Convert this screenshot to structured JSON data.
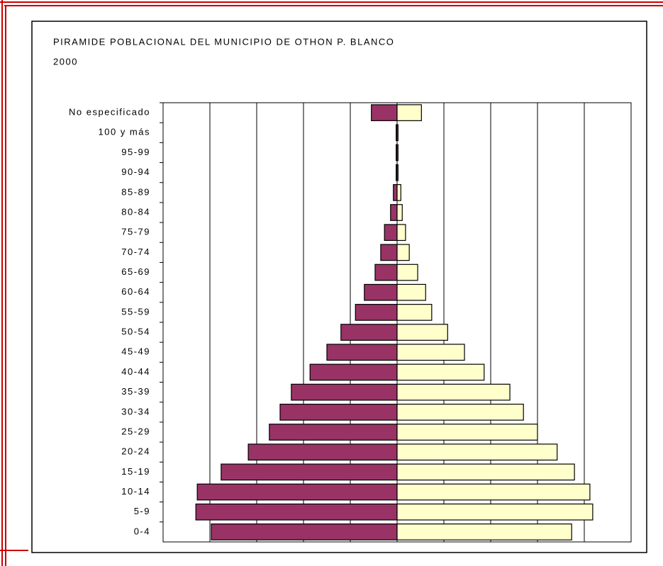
{
  "chart_data": {
    "type": "pyramid",
    "title": "PIRAMIDE POBLACIONAL DEL MUNICIPIO DE OTHON P. BLANCO",
    "subtitle": "2000",
    "categories": [
      "0-4",
      "5-9",
      "10-14",
      "15-19",
      "20-24",
      "25-29",
      "30-34",
      "35-39",
      "40-44",
      "45-49",
      "50-54",
      "55-59",
      "60-64",
      "65-69",
      "70-74",
      "75-79",
      "80-84",
      "85-89",
      "90-94",
      "95-99",
      "100 y más",
      "No especificado"
    ],
    "series": [
      {
        "color": "#993366",
        "values": [
          3.97,
          4.3,
          4.27,
          3.76,
          3.18,
          2.73,
          2.5,
          2.26,
          1.86,
          1.5,
          1.2,
          0.89,
          0.7,
          0.47,
          0.35,
          0.27,
          0.14,
          0.08,
          0.02,
          0.02,
          0.02,
          0.55
        ]
      },
      {
        "color": "#ffffcc",
        "values": [
          3.73,
          4.18,
          4.12,
          3.79,
          3.42,
          3.0,
          2.7,
          2.41,
          1.86,
          1.44,
          1.08,
          0.74,
          0.61,
          0.44,
          0.26,
          0.18,
          0.11,
          0.08,
          0.02,
          0.02,
          0.02,
          0.52
        ]
      }
    ],
    "xlim": [
      0,
      5
    ],
    "xticks": [
      0,
      1,
      2,
      3,
      4,
      5
    ],
    "grid": true
  }
}
